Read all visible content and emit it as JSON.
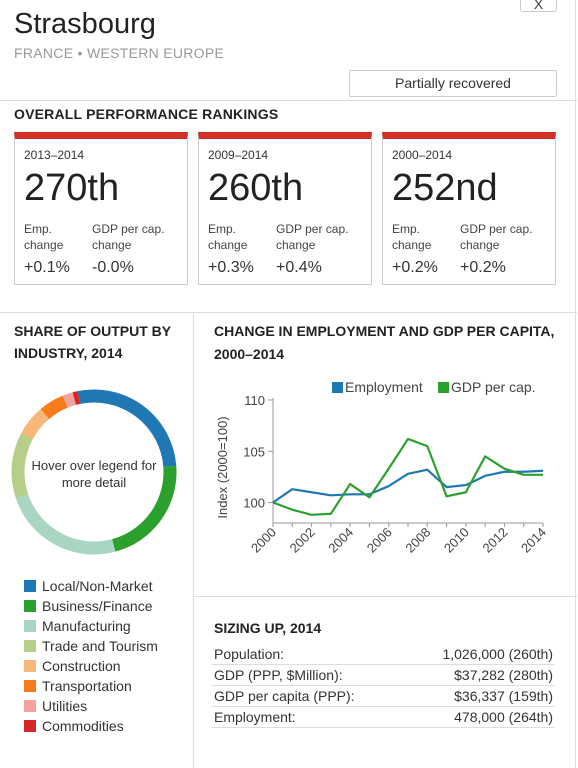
{
  "close_label": "X",
  "header": {
    "title": "Strasbourg",
    "subtitle": "FRANCE • WESTERN EUROPE",
    "status": "Partially recovered"
  },
  "rankings": {
    "heading": "OVERALL PERFORMANCE RANKINGS",
    "emp_label": "Emp. change",
    "gdp_label": "GDP per cap. change",
    "cards": [
      {
        "period": "2013–2014",
        "rank": "270th",
        "emp": "+0.1%",
        "gdp": "-0.0%"
      },
      {
        "period": "2009–2014",
        "rank": "260th",
        "emp": "+0.3%",
        "gdp": "+0.4%"
      },
      {
        "period": "2000–2014",
        "rank": "252nd",
        "emp": "+0.2%",
        "gdp": "+0.2%"
      }
    ],
    "accent": "#d22f27"
  },
  "share": {
    "heading": "SHARE OF OUTPUT BY INDUSTRY, 2014",
    "hint": "Hover over legend for more detail",
    "segments": [
      {
        "label": "Local/Non-Market",
        "color": "#1f77b4",
        "share": 27
      },
      {
        "label": "Business/Finance",
        "color": "#2ca02c",
        "share": 22
      },
      {
        "label": "Manufacturing",
        "color": "#a9d5c3",
        "share": 24
      },
      {
        "label": "Trade and Tourism",
        "color": "#b5cf8a",
        "share": 13
      },
      {
        "label": "Construction",
        "color": "#f7b77a",
        "share": 6
      },
      {
        "label": "Transportation",
        "color": "#f57c18",
        "share": 5
      },
      {
        "label": "Utilities",
        "color": "#f4a2a0",
        "share": 2
      },
      {
        "label": "Commodities",
        "color": "#d62728",
        "share": 1
      }
    ]
  },
  "change": {
    "heading": "CHANGE IN EMPLOYMENT AND GDP PER CAPITA, 2000–2014"
  },
  "chart_data": {
    "type": "line",
    "title": "CHANGE IN EMPLOYMENT AND GDP PER CAPITA, 2000–2014",
    "ylabel": "Index (2000=100)",
    "xlabel": "",
    "x": [
      2000,
      2001,
      2002,
      2003,
      2004,
      2005,
      2006,
      2007,
      2008,
      2009,
      2010,
      2011,
      2012,
      2013,
      2014
    ],
    "xticks": [
      "2000",
      "2002",
      "2004",
      "2006",
      "2008",
      "2010",
      "2012",
      "2014"
    ],
    "yticks": [
      "100",
      "105",
      "110"
    ],
    "ylim": [
      98,
      110
    ],
    "legend_position": "top",
    "series": [
      {
        "name": "Employment",
        "color": "#1f77b4",
        "values": [
          100,
          101.3,
          101.0,
          100.7,
          100.8,
          100.8,
          101.6,
          102.8,
          103.2,
          101.5,
          101.7,
          102.6,
          103.0,
          103.0,
          103.1
        ]
      },
      {
        "name": "GDP per cap.",
        "color": "#2ca02c",
        "values": [
          100,
          99.3,
          98.8,
          98.9,
          101.8,
          100.5,
          103.3,
          106.2,
          105.5,
          100.6,
          101.0,
          104.5,
          103.3,
          102.7,
          102.7
        ]
      }
    ]
  },
  "sizing": {
    "heading": "SIZING UP, 2014",
    "rows": [
      {
        "label": "Population:",
        "value": "1,026,000 (260th)"
      },
      {
        "label": "GDP (PPP, $Million):",
        "value": "$37,282 (280th)"
      },
      {
        "label": "GDP per capita (PPP):",
        "value": "$36,337 (159th)"
      },
      {
        "label": "Employment:",
        "value": "478,000 (264th)"
      }
    ]
  }
}
